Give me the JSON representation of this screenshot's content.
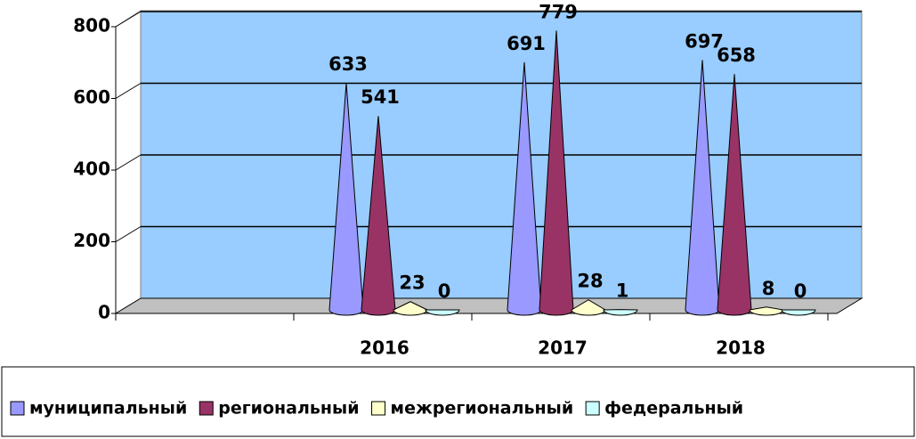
{
  "chart_data": {
    "type": "cone",
    "categories": [
      null,
      "2016",
      "2017",
      "2018"
    ],
    "series": [
      {
        "name": "муниципальный",
        "color": "#9999ff",
        "values": [
          null,
          633,
          691,
          697
        ]
      },
      {
        "name": "региональный",
        "color": "#993366",
        "values": [
          null,
          541,
          779,
          658
        ]
      },
      {
        "name": "межрегиональный",
        "color": "#ffffcc",
        "values": [
          null,
          23,
          28,
          8
        ]
      },
      {
        "name": "федеральный",
        "color": "#ccffff",
        "values": [
          null,
          0,
          1,
          0
        ]
      }
    ],
    "ylim": [
      0,
      800
    ],
    "yticks": [
      0,
      200,
      400,
      600,
      800
    ],
    "grid": true,
    "legend": "bottom"
  }
}
